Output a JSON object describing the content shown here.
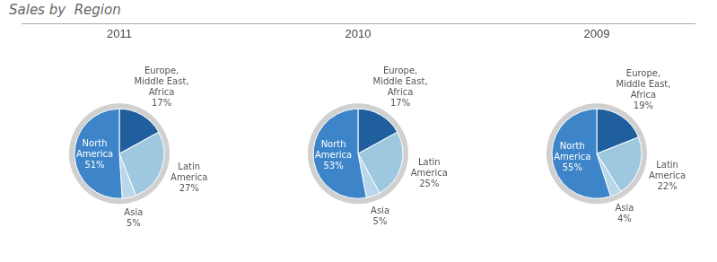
{
  "title": "Sales by  Region",
  "chart_data": [
    {
      "type": "pie",
      "title": "2011",
      "categories": [
        "Europe,\nMiddle East,\nAfrica",
        "Latin\nAmerica",
        "Asia",
        "North\nAmerica"
      ],
      "values": [
        17,
        27,
        5,
        51
      ],
      "value_labels": [
        "17%",
        "27%",
        "5%",
        "51%"
      ],
      "colors": [
        "#1f5f9e",
        "#9ec8e0",
        "#bad6ea",
        "#3d85c8"
      ],
      "data_labels": true
    },
    {
      "type": "pie",
      "title": "2010",
      "categories": [
        "Europe,\nMiddle East,\nAfrica",
        "Latin\nAmerica",
        "Asia",
        "North\nAmerica"
      ],
      "values": [
        17,
        25,
        5,
        53
      ],
      "value_labels": [
        "17%",
        "25%",
        "5%",
        "53%"
      ],
      "colors": [
        "#1f5f9e",
        "#9ec8e0",
        "#bad6ea",
        "#3d85c8"
      ],
      "data_labels": true
    },
    {
      "type": "pie",
      "title": "2009",
      "categories": [
        "Europe,\nMiddle East,\nAfrica",
        "Latin\nAmerica",
        "Asia",
        "North\nAmerica"
      ],
      "values": [
        19,
        22,
        4,
        55
      ],
      "value_labels": [
        "19%",
        "22%",
        "4%",
        "55%"
      ],
      "colors": [
        "#1f5f9e",
        "#9ec8e0",
        "#bad6ea",
        "#3d85c8"
      ],
      "data_labels": true
    }
  ]
}
